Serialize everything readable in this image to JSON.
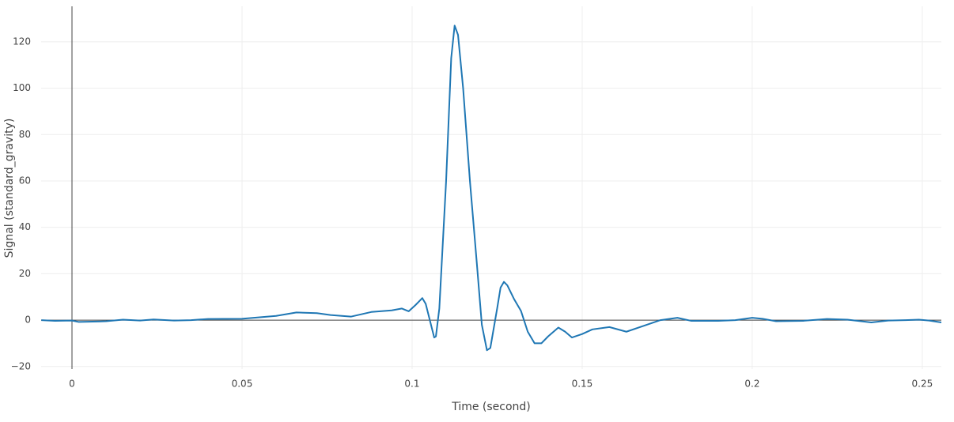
{
  "chart_data": {
    "type": "line",
    "x_label": "Time (second)",
    "y_label": "Signal (standard_gravity)",
    "xlim": [
      -0.00907,
      0.2556
    ],
    "ylim": [
      -21.1,
      135.3
    ],
    "xticks": [
      0,
      0.05,
      0.1,
      0.15,
      0.2,
      0.25
    ],
    "yticks": [
      {
        "value": -20,
        "label": "−20"
      },
      0,
      20,
      40,
      60,
      80,
      100,
      120
    ],
    "grid": true,
    "zeroline": true,
    "series": [
      {
        "color": "#1f77b4",
        "x": [
          -0.009,
          -0.005,
          0,
          0.002,
          0.01,
          0.015,
          0.02,
          0.024,
          0.03,
          0.035,
          0.04,
          0.05,
          0.06,
          0.066,
          0.072,
          0.076,
          0.082,
          0.088,
          0.094,
          0.097,
          0.099,
          0.101,
          0.103,
          0.104,
          0.1065,
          0.107,
          0.108,
          0.11,
          0.1115,
          0.1125,
          0.1135,
          0.115,
          0.117,
          0.119,
          0.1205,
          0.122,
          0.123,
          0.125,
          0.126,
          0.127,
          0.128,
          0.13,
          0.132,
          0.134,
          0.136,
          0.138,
          0.14,
          0.143,
          0.145,
          0.147,
          0.15,
          0.153,
          0.158,
          0.163,
          0.168,
          0.173,
          0.178,
          0.182,
          0.19,
          0.195,
          0.2,
          0.203,
          0.207,
          0.215,
          0.222,
          0.228,
          0.235,
          0.24,
          0.245,
          0.249,
          0.252,
          0.2556
        ],
        "values": [
          0,
          -0.3,
          -0.2,
          -0.8,
          -0.5,
          0.2,
          -0.2,
          0.3,
          -0.2,
          0,
          0.5,
          0.6,
          1.8,
          3.3,
          3,
          2.2,
          1.5,
          3.5,
          4.2,
          5,
          3.8,
          6.5,
          9.5,
          7,
          -7.5,
          -7,
          5,
          60,
          113,
          127,
          123,
          100,
          60,
          25,
          -2,
          -13,
          -12,
          5,
          14,
          16.5,
          15,
          9,
          4,
          -5,
          -10,
          -10,
          -7,
          -3.2,
          -5,
          -7.5,
          -6,
          -4,
          -3,
          -5,
          -2.5,
          0,
          1,
          -0.3,
          -0.3,
          0,
          1,
          0.6,
          -0.5,
          -0.3,
          0.5,
          0.2,
          -1,
          -0.2,
          0,
          0.2,
          -0.2,
          -1
        ]
      }
    ]
  }
}
